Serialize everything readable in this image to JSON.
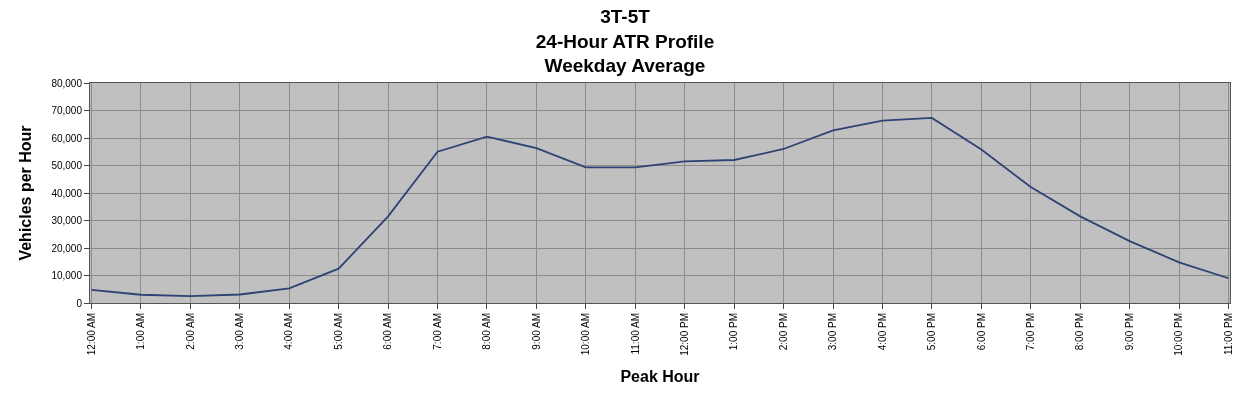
{
  "chart_data": {
    "type": "line",
    "title": "3T-5T\n24-Hour ATR Profile\nWeekday Average",
    "xlabel": "Peak Hour",
    "ylabel": "Vehicles per Hour",
    "categories": [
      "12:00 AM",
      "1:00 AM",
      "2:00 AM",
      "3:00 AM",
      "4:00 AM",
      "5:00 AM",
      "6:00 AM",
      "7:00 AM",
      "8:00 AM",
      "9:00 AM",
      "10:00 AM",
      "11:00 AM",
      "12:00 PM",
      "1:00 PM",
      "2:00 PM",
      "3:00 PM",
      "4:00 PM",
      "5:00 PM",
      "6:00 PM",
      "7:00 PM",
      "8:00 PM",
      "9:00 PM",
      "10:00 PM",
      "11:00 PM"
    ],
    "series": [
      {
        "color": "#2e4374",
        "values": [
          4800,
          3000,
          2500,
          3100,
          5300,
          12500,
          31500,
          55000,
          60500,
          56300,
          49300,
          49300,
          51500,
          52000,
          56000,
          62800,
          66300,
          67300,
          55800,
          42200,
          31500,
          22500,
          14800,
          9000
        ]
      }
    ],
    "ylim": [
      0,
      80000
    ],
    "yticks": [
      0,
      {
        "value": 10000,
        "label": "10,000"
      },
      {
        "value": 20000,
        "label": "20,000"
      },
      {
        "value": 30000,
        "label": "30,000"
      },
      {
        "value": 40000,
        "label": "40,000"
      },
      {
        "value": 50000,
        "label": "50,000"
      },
      {
        "value": 60000,
        "label": "60,000"
      },
      {
        "value": 70000,
        "label": "70,000"
      },
      {
        "value": 80000,
        "label": "80,000"
      }
    ],
    "grid": true,
    "legend": false,
    "marker": "none",
    "line_style": "solid"
  }
}
